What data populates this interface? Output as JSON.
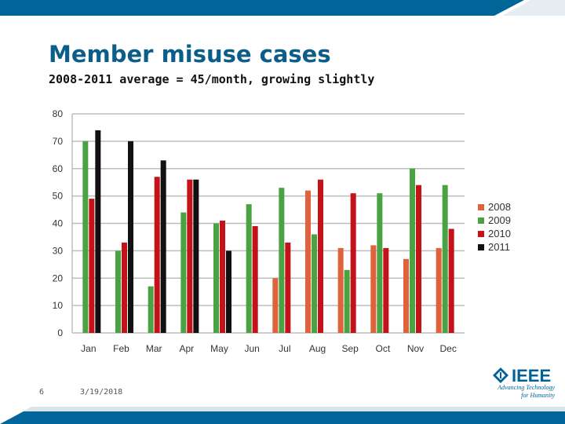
{
  "slide": {
    "title": "Member misuse cases",
    "subtitle": "2008-2011 average = 45/month, growing slightly",
    "page_number": "6",
    "date": "3/19/2018"
  },
  "logo": {
    "word": "IEEE",
    "tagline": "Advancing Technology for Humanity",
    "icon": "ieee-diamond-icon"
  },
  "colors": {
    "band": "#006699",
    "title": "#0b5e8a"
  },
  "chart_data": {
    "type": "bar",
    "categories": [
      "Jan",
      "Feb",
      "Mar",
      "Apr",
      "May",
      "Jun",
      "Jul",
      "Aug",
      "Sep",
      "Oct",
      "Nov",
      "Dec"
    ],
    "ylim": [
      0,
      80
    ],
    "yticks": [
      0,
      10,
      20,
      30,
      40,
      50,
      60,
      70,
      80
    ],
    "grid": true,
    "legend_position": "right",
    "series": [
      {
        "name": "2008",
        "color": "#e0623c",
        "values": [
          null,
          null,
          null,
          null,
          null,
          null,
          20,
          52,
          31,
          32,
          27,
          31
        ]
      },
      {
        "name": "2009",
        "color": "#4aa342",
        "values": [
          70,
          30,
          17,
          44,
          40,
          47,
          53,
          36,
          23,
          51,
          60,
          54
        ]
      },
      {
        "name": "2010",
        "color": "#c4121a",
        "values": [
          49,
          33,
          57,
          56,
          41,
          39,
          33,
          56,
          51,
          31,
          54,
          38
        ]
      },
      {
        "name": "2011",
        "color": "#111111",
        "values": [
          74,
          70,
          63,
          56,
          30,
          null,
          null,
          null,
          null,
          null,
          null,
          null
        ]
      }
    ]
  }
}
